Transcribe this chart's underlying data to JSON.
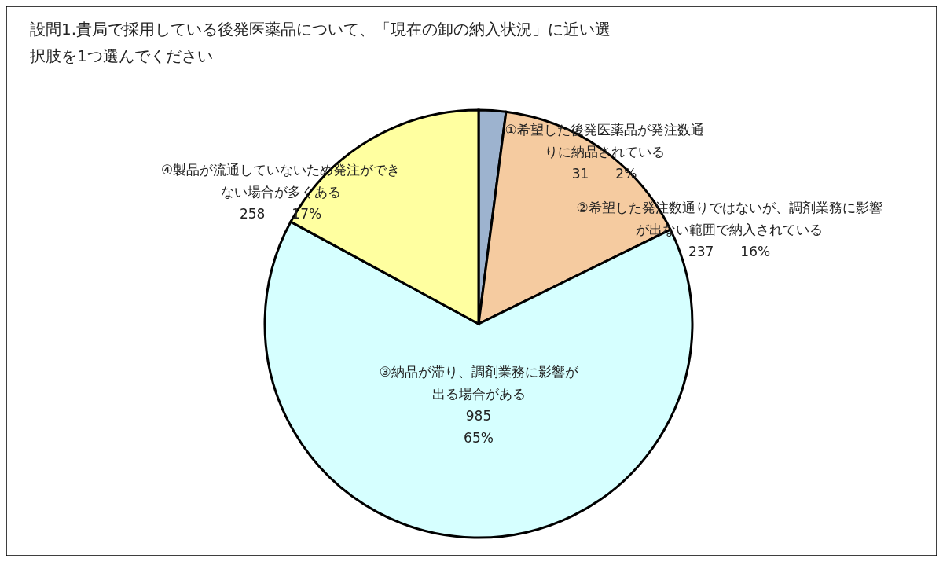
{
  "chart_data": {
    "type": "pie",
    "title": "設問1.貴局で採用している後発医薬品について、「現在の卸の納入状況」に近い選択肢を1つ選んでください",
    "categories": [
      "①希望した後発医薬品が発注数通りに納品されている",
      "②希望した発注数通りではないが、調剤業務に影響が出ない範囲で納入されている",
      "③納品が滞り、調剤業務に影響が出る場合がある",
      "④製品が流通していないため発注ができない場合が多くある"
    ],
    "values": [
      31,
      237,
      985,
      258
    ],
    "colors": [
      "#9db3cf",
      "#f5cba0",
      "#d6ffff",
      "#ffffa0"
    ],
    "value_labels": [
      "31 2%",
      "237 16%",
      "985 65%",
      "258 17%"
    ]
  }
}
